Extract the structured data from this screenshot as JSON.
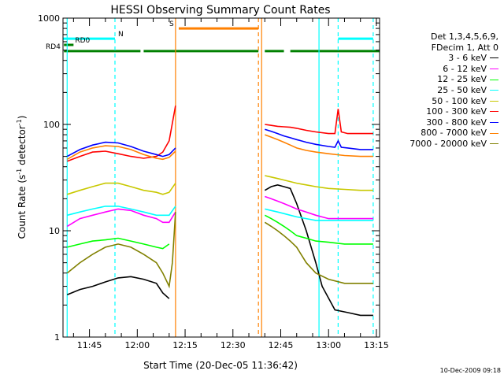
{
  "chart_data": {
    "type": "line",
    "title": "HESSI Observing Summary Count Rates",
    "xlabel": "Start Time (20-Dec-05 11:36:42)",
    "ylabel": "Count Rate (s",
    "ylabel_sup": "-1",
    "ylabel_mid": " detector",
    "ylabel_sup2": "-1",
    "ylabel_end": ")",
    "y_scale": "log",
    "ylim": [
      1,
      1000
    ],
    "xlim": [
      "11:36:42",
      "13:16:00"
    ],
    "y_ticks": [
      "1",
      "10",
      "100",
      "1000"
    ],
    "x_ticks": [
      "11:45",
      "12:00",
      "12:15",
      "12:30",
      "12:45",
      "13:00",
      "13:15"
    ],
    "grid": false,
    "legend_position": "right",
    "legend_header": [
      "Det 1,3,4,5,6,9,",
      "FDecim 1, Att 0"
    ],
    "series": [
      {
        "name": "3 - 6 keV",
        "color": "#000000",
        "segments": [
          {
            "x": [
              "11:38",
              "11:42",
              "11:46",
              "11:50",
              "11:54",
              "11:58",
              "12:02",
              "12:06",
              "12:08",
              "12:10"
            ],
            "y": [
              2.5,
              2.8,
              3.0,
              3.3,
              3.6,
              3.7,
              3.5,
              3.2,
              2.6,
              2.3
            ]
          },
          {
            "x": [
              "12:40",
              "12:42",
              "12:44",
              "12:46",
              "12:48",
              "12:50",
              "12:53",
              "12:56",
              "12:58",
              "13:02",
              "13:06",
              "13:10",
              "13:14"
            ],
            "y": [
              24,
              26,
              27,
              26,
              25,
              18,
              10,
              5,
              3,
              1.8,
              1.7,
              1.6,
              1.6
            ]
          }
        ]
      },
      {
        "name": "6 - 12 keV",
        "color": "#ff00ff",
        "segments": [
          {
            "x": [
              "11:38",
              "11:42",
              "11:46",
              "11:50",
              "11:54",
              "11:58",
              "12:02",
              "12:06",
              "12:08",
              "12:10",
              "12:12"
            ],
            "y": [
              11,
              13,
              14,
              15,
              16,
              15.5,
              14,
              13,
              12,
              12,
              15
            ]
          },
          {
            "x": [
              "12:40",
              "12:42",
              "12:44",
              "12:46",
              "12:48",
              "12:50",
              "12:53",
              "12:56",
              "13:00",
              "13:05",
              "13:10",
              "13:14"
            ],
            "y": [
              21,
              20,
              19,
              18,
              17,
              16,
              15,
              14,
              13,
              13,
              13,
              13
            ]
          }
        ]
      },
      {
        "name": "12 - 25 keV",
        "color": "#00ff00",
        "segments": [
          {
            "x": [
              "11:38",
              "11:42",
              "11:46",
              "11:50",
              "11:54",
              "11:58",
              "12:02",
              "12:06",
              "12:08",
              "12:10"
            ],
            "y": [
              7,
              7.5,
              8,
              8.2,
              8.5,
              8,
              7.5,
              7,
              6.8,
              7.5
            ]
          },
          {
            "x": [
              "12:40",
              "12:42",
              "12:44",
              "12:46",
              "12:48",
              "12:50",
              "12:53",
              "12:56",
              "13:00",
              "13:05",
              "13:10",
              "13:14"
            ],
            "y": [
              14,
              13,
              12,
              11,
              10,
              9,
              8.5,
              8,
              7.8,
              7.5,
              7.5,
              7.5
            ]
          }
        ]
      },
      {
        "name": "25 - 50 keV",
        "color": "#00ffff",
        "segments": [
          {
            "x": [
              "11:38",
              "11:42",
              "11:46",
              "11:50",
              "11:54",
              "11:58",
              "12:02",
              "12:06",
              "12:08",
              "12:10",
              "12:12"
            ],
            "y": [
              14,
              15,
              16,
              17,
              17,
              16,
              15,
              14,
              14,
              14,
              17
            ]
          },
          {
            "x": [
              "12:40",
              "12:42",
              "12:44",
              "12:46",
              "12:48",
              "12:50",
              "12:53",
              "12:56",
              "13:00",
              "13:05",
              "13:10",
              "13:14"
            ],
            "y": [
              16,
              15.5,
              15,
              14.5,
              14,
              13.5,
              13,
              12.5,
              12.5,
              12.5,
              12.5,
              12.5
            ]
          }
        ]
      },
      {
        "name": "50 - 100 keV",
        "color": "#c8c800",
        "segments": [
          {
            "x": [
              "11:38",
              "11:42",
              "11:46",
              "11:50",
              "11:54",
              "11:58",
              "12:02",
              "12:06",
              "12:08",
              "12:10",
              "12:12"
            ],
            "y": [
              22,
              24,
              26,
              28,
              28,
              26,
              24,
              23,
              22,
              23,
              28
            ]
          },
          {
            "x": [
              "12:40",
              "12:42",
              "12:44",
              "12:46",
              "12:48",
              "12:50",
              "12:53",
              "12:56",
              "13:00",
              "13:05",
              "13:10",
              "13:14"
            ],
            "y": [
              33,
              32,
              31,
              30,
              29,
              28,
              27,
              26,
              25,
              24.5,
              24,
              24
            ]
          }
        ]
      },
      {
        "name": "100 - 300 keV",
        "color": "#ff0000",
        "segments": [
          {
            "x": [
              "11:38",
              "11:42",
              "11:46",
              "11:50",
              "11:54",
              "11:58",
              "12:02",
              "12:06",
              "12:08",
              "12:10",
              "12:12"
            ],
            "y": [
              45,
              50,
              55,
              56,
              53,
              50,
              48,
              50,
              55,
              70,
              150
            ]
          },
          {
            "x": [
              "12:40",
              "12:42",
              "12:44",
              "12:46",
              "12:48",
              "12:50",
              "12:53",
              "12:56",
              "13:00",
              "13:02",
              "13:03",
              "13:04",
              "13:06",
              "13:10",
              "13:14"
            ],
            "y": [
              100,
              98,
              96,
              95,
              94,
              92,
              88,
              85,
              82,
              82,
              140,
              85,
              82,
              82,
              82
            ]
          }
        ]
      },
      {
        "name": "300 - 800 keV",
        "color": "#0000ff",
        "segments": [
          {
            "x": [
              "11:38",
              "11:42",
              "11:46",
              "11:50",
              "11:54",
              "11:58",
              "12:02",
              "12:06",
              "12:08",
              "12:10",
              "12:12"
            ],
            "y": [
              50,
              58,
              64,
              68,
              67,
              62,
              56,
              52,
              50,
              52,
              60
            ]
          },
          {
            "x": [
              "12:40",
              "12:42",
              "12:44",
              "12:46",
              "12:48",
              "12:50",
              "12:53",
              "12:56",
              "13:00",
              "13:02",
              "13:03",
              "13:04",
              "13:06",
              "13:10",
              "13:14"
            ],
            "y": [
              90,
              86,
              82,
              78,
              75,
              72,
              68,
              65,
              62,
              61,
              70,
              61,
              60,
              58,
              58
            ]
          }
        ]
      },
      {
        "name": "800 - 7000 keV",
        "color": "#ff8000",
        "segments": [
          {
            "x": [
              "11:38",
              "11:42",
              "11:46",
              "11:50",
              "11:54",
              "11:58",
              "12:02",
              "12:06",
              "12:08",
              "12:10",
              "12:12"
            ],
            "y": [
              47,
              55,
              60,
              63,
              62,
              58,
              52,
              48,
              47,
              49,
              56
            ]
          },
          {
            "x": [
              "12:40",
              "12:42",
              "12:44",
              "12:46",
              "12:48",
              "12:50",
              "12:53",
              "12:56",
              "13:00",
              "13:05",
              "13:10",
              "13:14"
            ],
            "y": [
              80,
              76,
              72,
              68,
              64,
              60,
              57,
              55,
              53,
              51,
              50,
              50
            ]
          }
        ]
      },
      {
        "name": "7000 - 20000 keV",
        "color": "#808000",
        "segments": [
          {
            "x": [
              "11:38",
              "11:42",
              "11:46",
              "11:50",
              "11:54",
              "11:58",
              "12:02",
              "12:06",
              "12:08",
              "12:10",
              "12:11",
              "12:12"
            ],
            "y": [
              4,
              5,
              6,
              7,
              7.5,
              7,
              6,
              5,
              4,
              3,
              5,
              15
            ]
          },
          {
            "x": [
              "12:40",
              "12:42",
              "12:44",
              "12:46",
              "12:48",
              "12:50",
              "12:53",
              "12:56",
              "13:00",
              "13:05",
              "13:10",
              "13:14"
            ],
            "y": [
              12,
              11,
              10,
              9,
              8,
              7,
              5,
              4,
              3.5,
              3.2,
              3.2,
              3.2
            ]
          }
        ]
      }
    ],
    "state_bars": [
      {
        "label": "N",
        "color": "#00ffff",
        "segments": [
          [
            "11:36:42",
            "11:53"
          ],
          [
            "13:03",
            "13:14"
          ]
        ],
        "level": 640
      },
      {
        "label": "S",
        "color": "#ff8000",
        "segments": [
          [
            "12:13",
            "12:38"
          ]
        ],
        "level": 800
      },
      {
        "label": "RD0",
        "color": "#008000",
        "segments": [
          [
            "11:37",
            "11:40"
          ]
        ],
        "level": 560
      },
      {
        "label": "RD4",
        "color": "#008000",
        "segments": [
          [
            "11:37",
            "12:01"
          ],
          [
            "12:02",
            "12:38"
          ],
          [
            "12:40",
            "12:46"
          ],
          [
            "12:48",
            "13:16"
          ]
        ],
        "level": 490
      }
    ],
    "vlines": [
      {
        "time": "11:38",
        "color": "#00ffff",
        "style": "solid"
      },
      {
        "time": "11:53",
        "color": "#00ffff",
        "style": "dashed"
      },
      {
        "time": "12:12",
        "color": "#ff8000",
        "style": "solid"
      },
      {
        "time": "12:38",
        "color": "#ff8000",
        "style": "dashed"
      },
      {
        "time": "12:39",
        "color": "#ff8000",
        "style": "solid"
      },
      {
        "time": "12:57",
        "color": "#00ffff",
        "style": "solid"
      },
      {
        "time": "13:03",
        "color": "#00ffff",
        "style": "dashed"
      },
      {
        "time": "13:14",
        "color": "#00ffff",
        "style": "dashed"
      }
    ]
  },
  "footer": "10-Dec-2009 09:18"
}
